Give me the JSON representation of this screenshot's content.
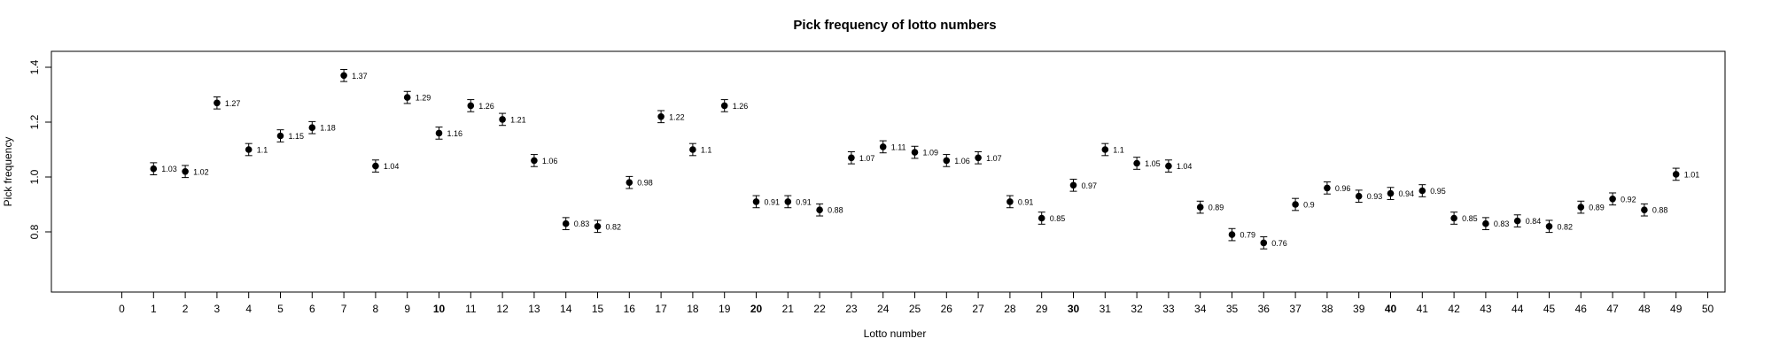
{
  "chart_data": {
    "type": "scatter",
    "title": "Pick frequency of lotto numbers",
    "xlabel": "Lotto number",
    "ylabel": "Pick frequency",
    "xlim": [
      0,
      50
    ],
    "ylim": [
      0.65,
      1.5
    ],
    "x_ticks": [
      0,
      1,
      2,
      3,
      4,
      5,
      6,
      7,
      8,
      9,
      10,
      11,
      12,
      13,
      14,
      15,
      16,
      17,
      18,
      19,
      20,
      21,
      22,
      23,
      24,
      25,
      26,
      27,
      28,
      29,
      30,
      31,
      32,
      33,
      34,
      35,
      36,
      37,
      38,
      39,
      40,
      41,
      42,
      43,
      44,
      45,
      46,
      47,
      48,
      49,
      50
    ],
    "bold_x_ticks": [
      10,
      20,
      30,
      40
    ],
    "y_ticks": [
      0.8,
      1.0,
      1.2,
      1.4
    ],
    "y_tick_labels": [
      "0.8",
      "1.0",
      "1.2",
      "1.4"
    ],
    "grid": false,
    "error_bar_halfwidth": 0.022,
    "points": [
      {
        "x": 1,
        "y": 1.03,
        "label": "1.03"
      },
      {
        "x": 2,
        "y": 1.02,
        "label": "1.02"
      },
      {
        "x": 3,
        "y": 1.27,
        "label": "1.27"
      },
      {
        "x": 4,
        "y": 1.1,
        "label": "1.1"
      },
      {
        "x": 5,
        "y": 1.15,
        "label": "1.15"
      },
      {
        "x": 6,
        "y": 1.18,
        "label": "1.18"
      },
      {
        "x": 7,
        "y": 1.37,
        "label": "1.37"
      },
      {
        "x": 8,
        "y": 1.04,
        "label": "1.04"
      },
      {
        "x": 9,
        "y": 1.29,
        "label": "1.29"
      },
      {
        "x": 10,
        "y": 1.16,
        "label": "1.16"
      },
      {
        "x": 11,
        "y": 1.26,
        "label": "1.26"
      },
      {
        "x": 12,
        "y": 1.21,
        "label": "1.21"
      },
      {
        "x": 13,
        "y": 1.06,
        "label": "1.06"
      },
      {
        "x": 14,
        "y": 0.83,
        "label": "0.83"
      },
      {
        "x": 15,
        "y": 0.82,
        "label": "0.82"
      },
      {
        "x": 16,
        "y": 0.98,
        "label": "0.98"
      },
      {
        "x": 17,
        "y": 1.22,
        "label": "1.22"
      },
      {
        "x": 18,
        "y": 1.1,
        "label": "1.1"
      },
      {
        "x": 19,
        "y": 1.26,
        "label": "1.26"
      },
      {
        "x": 20,
        "y": 0.91,
        "label": "0.91"
      },
      {
        "x": 21,
        "y": 0.91,
        "label": "0.91"
      },
      {
        "x": 22,
        "y": 0.88,
        "label": "0.88"
      },
      {
        "x": 23,
        "y": 1.07,
        "label": "1.07"
      },
      {
        "x": 24,
        "y": 1.11,
        "label": "1.11"
      },
      {
        "x": 25,
        "y": 1.09,
        "label": "1.09"
      },
      {
        "x": 26,
        "y": 1.06,
        "label": "1.06"
      },
      {
        "x": 27,
        "y": 1.07,
        "label": "1.07"
      },
      {
        "x": 28,
        "y": 0.91,
        "label": "0.91"
      },
      {
        "x": 29,
        "y": 0.85,
        "label": "0.85"
      },
      {
        "x": 30,
        "y": 0.97,
        "label": "0.97"
      },
      {
        "x": 31,
        "y": 1.1,
        "label": "1.1"
      },
      {
        "x": 32,
        "y": 1.05,
        "label": "1.05"
      },
      {
        "x": 33,
        "y": 1.04,
        "label": "1.04"
      },
      {
        "x": 34,
        "y": 0.89,
        "label": "0.89"
      },
      {
        "x": 35,
        "y": 0.79,
        "label": "0.79"
      },
      {
        "x": 36,
        "y": 0.76,
        "label": "0.76"
      },
      {
        "x": 37,
        "y": 0.9,
        "label": "0.9"
      },
      {
        "x": 38,
        "y": 0.96,
        "label": "0.96"
      },
      {
        "x": 39,
        "y": 0.93,
        "label": "0.93"
      },
      {
        "x": 40,
        "y": 0.94,
        "label": "0.94"
      },
      {
        "x": 41,
        "y": 0.95,
        "label": "0.95"
      },
      {
        "x": 42,
        "y": 0.85,
        "label": "0.85"
      },
      {
        "x": 43,
        "y": 0.83,
        "label": "0.83"
      },
      {
        "x": 44,
        "y": 0.84,
        "label": "0.84"
      },
      {
        "x": 45,
        "y": 0.82,
        "label": "0.82"
      },
      {
        "x": 46,
        "y": 0.89,
        "label": "0.89"
      },
      {
        "x": 47,
        "y": 0.92,
        "label": "0.92"
      },
      {
        "x": 48,
        "y": 0.88,
        "label": "0.88"
      },
      {
        "x": 49,
        "y": 1.01,
        "label": "1.01"
      }
    ],
    "colors": {
      "points": "#000000",
      "frame": "#000000",
      "background": "#ffffff"
    }
  }
}
